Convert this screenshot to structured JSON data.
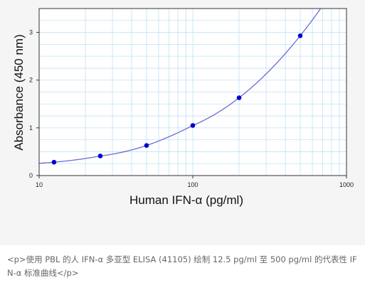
{
  "chart_data": {
    "type": "scatter",
    "xlabel": "Human IFN-α (pg/ml)",
    "ylabel": "Absorbance (450 nm)",
    "xscale": "log",
    "xlim": [
      10,
      1000
    ],
    "ylim": [
      0,
      3.5
    ],
    "x_ticks": [
      10,
      100,
      1000
    ],
    "x_tick_labels": [
      "10",
      "100",
      "1000"
    ],
    "y_ticks": [
      0,
      1,
      2,
      3
    ],
    "y_tick_labels": [
      "0",
      "1",
      "2",
      "3"
    ],
    "grid": true,
    "points": [
      {
        "x": 12.5,
        "y": 0.28
      },
      {
        "x": 25,
        "y": 0.41
      },
      {
        "x": 50,
        "y": 0.63
      },
      {
        "x": 100,
        "y": 1.05
      },
      {
        "x": 200,
        "y": 1.63
      },
      {
        "x": 500,
        "y": 2.93
      }
    ],
    "marker_color": "#0000cc",
    "curve_color": "#6b6bd6",
    "grid_color": "#bfe3f5"
  },
  "caption": {
    "text": "<p>使用 PBL 的人 IFN-α 多亚型 ELISA (41105) 绘制 12.5 pg/ml 至 500 pg/ml 的代表性 IFN-α 标准曲线</p>"
  }
}
